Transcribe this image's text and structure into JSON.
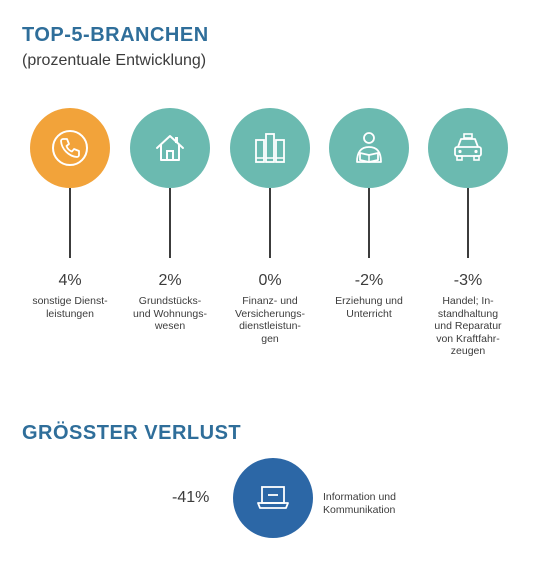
{
  "header": {
    "title": "TOP-5-BRANCHEN",
    "subtitle": "(prozentuale Entwicklung)"
  },
  "colors": {
    "title": "#2f6e9a",
    "highlight": "#f2a33a",
    "teal": "#6bbab0",
    "loss": "#2c67a6"
  },
  "branches": [
    {
      "icon": "phone-icon",
      "percent": "4%",
      "label": "sonstige Dienst-\nleistungen",
      "color": "#f2a33a"
    },
    {
      "icon": "house-icon",
      "percent": "2%",
      "label": "Grundstücks-\nund Wohnungs-\nwesen",
      "color": "#6bbab0"
    },
    {
      "icon": "files-icon",
      "percent": "0%",
      "label": "Finanz- und\nVersicherungs-\ndienstleistun-\ngen",
      "color": "#6bbab0"
    },
    {
      "icon": "reader-icon",
      "percent": "-2%",
      "label": "Erziehung und\nUnterricht",
      "color": "#6bbab0"
    },
    {
      "icon": "car-icon",
      "percent": "-3%",
      "label": "Handel; In-\nstandhaltung\nund Reparatur\nvon Kraftfahr-\nzeugen",
      "color": "#6bbab0"
    }
  ],
  "loss": {
    "title": "GRÖSSTER VERLUST",
    "percent": "-41%",
    "icon": "laptop-icon",
    "label": "Information und\nKommunikation"
  }
}
